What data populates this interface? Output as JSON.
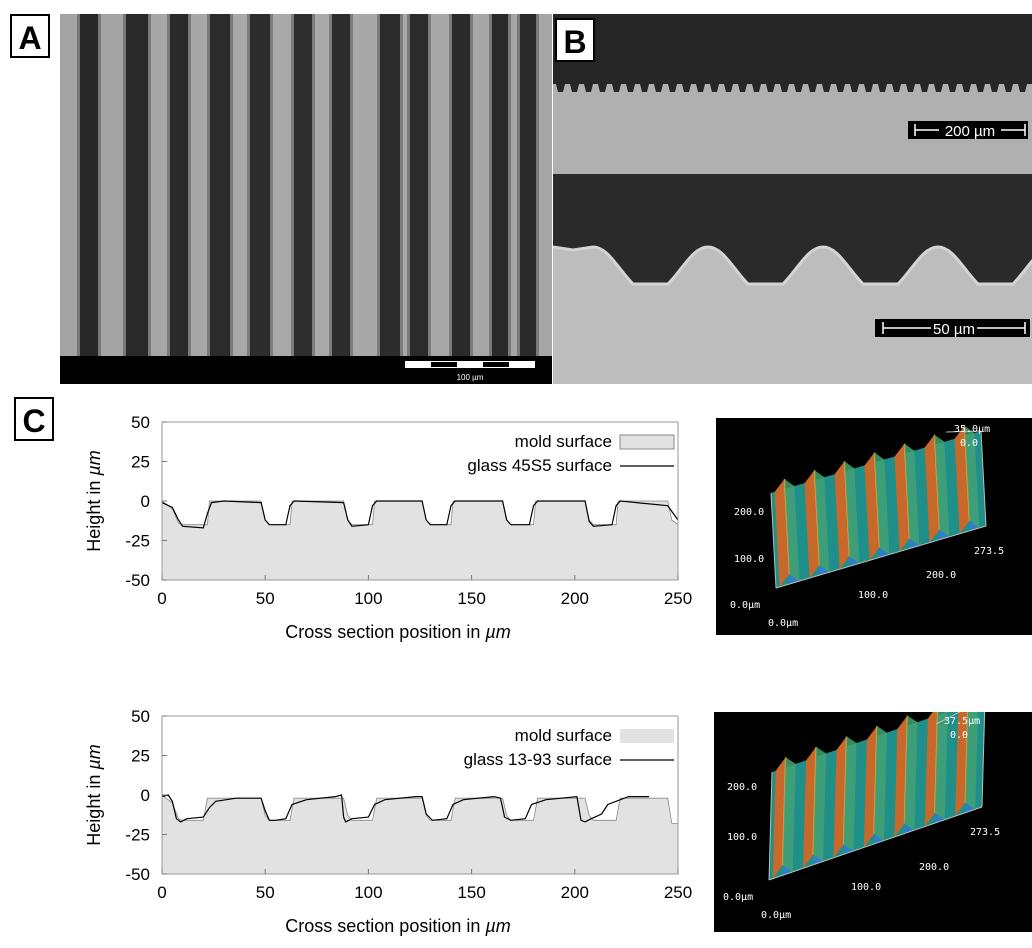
{
  "labels": {
    "a": "A",
    "b": "B",
    "c": "C"
  },
  "panel_a": {
    "scale_bar": "100 µm"
  },
  "panel_b": {
    "scale_top": "200 µm",
    "scale_bottom": "50 µm"
  },
  "profile_charts": [
    {
      "ylabel_prefix": "Height in ",
      "ylabel_unit": "µm",
      "xlabel_prefix": "Cross section position in ",
      "xlabel_unit": "µm",
      "legend_mold": "mold surface",
      "legend_glass": "glass 45S5 surface",
      "y_ticks": [
        "50",
        "25",
        "0",
        "-25",
        "-50"
      ],
      "x_ticks": [
        "0",
        "50",
        "100",
        "150",
        "200",
        "250"
      ]
    },
    {
      "ylabel_prefix": "Height in ",
      "ylabel_unit": "µm",
      "xlabel_prefix": "Cross section position in ",
      "xlabel_unit": "µm",
      "legend_mold": "mold surface",
      "legend_glass": "glass 13-93 surface",
      "y_ticks": [
        "50",
        "25",
        "0",
        "-25",
        "-50"
      ],
      "x_ticks": [
        "0",
        "50",
        "100",
        "150",
        "200",
        "250"
      ]
    }
  ],
  "surface_3d": [
    {
      "z_top": "35.0µm",
      "z_zero": "0.0",
      "y_200": "200.0",
      "y_100": "100.0",
      "y_0": "0.0µm",
      "x_0": "0.0µm",
      "x_100": "100.0",
      "x_200": "200.0",
      "x_end": "273.5"
    },
    {
      "z_top": "37.5µm",
      "z_zero": "0.0",
      "y_200": "200.0",
      "y_100": "100.0",
      "y_0": "0.0µm",
      "x_0": "0.0µm",
      "x_100": "100.0",
      "x_200": "200.0",
      "x_end": "273.5"
    }
  ],
  "chart_data": [
    {
      "type": "area",
      "ylabel": "Height in µm",
      "xlabel": "Cross section position in µm",
      "xlim": [
        0,
        250
      ],
      "ylim": [
        -50,
        50
      ],
      "series": [
        {
          "name": "mold surface",
          "x": [
            0,
            5,
            8,
            10,
            22,
            23,
            48,
            50,
            52,
            62,
            63,
            88,
            90,
            92,
            102,
            103,
            126,
            128,
            130,
            140,
            141,
            165,
            167,
            169,
            180,
            181,
            205,
            207,
            209,
            220,
            221,
            245,
            247,
            250
          ],
          "y": [
            0,
            -5,
            -14,
            -15,
            -15,
            0,
            0,
            -12,
            -15,
            -15,
            0,
            0,
            -12,
            -15,
            -15,
            0,
            0,
            -12,
            -15,
            -15,
            0,
            0,
            -12,
            -15,
            -15,
            0,
            0,
            -12,
            -15,
            -15,
            0,
            0,
            -12,
            -15
          ]
        },
        {
          "name": "glass 45S5 surface",
          "x": [
            0,
            5,
            8,
            10,
            20,
            22,
            24,
            30,
            48,
            50,
            52,
            60,
            62,
            64,
            88,
            90,
            92,
            100,
            102,
            104,
            126,
            128,
            130,
            138,
            140,
            142,
            165,
            167,
            169,
            178,
            180,
            182,
            205,
            207,
            209,
            218,
            220,
            222,
            245,
            250
          ],
          "y": [
            -1,
            -4,
            -12,
            -16,
            -17,
            -8,
            -1,
            0,
            -1,
            -12,
            -15,
            -15,
            -3,
            0,
            -1,
            -12,
            -16,
            -15,
            -3,
            0,
            0,
            -12,
            -15,
            -15,
            -3,
            0,
            0,
            -12,
            -15,
            -15,
            -3,
            0,
            0,
            -13,
            -16,
            -15,
            -3,
            0,
            -3,
            -12
          ]
        }
      ]
    },
    {
      "type": "area",
      "ylabel": "Height in µm",
      "xlabel": "Cross section position in µm",
      "xlim": [
        0,
        250
      ],
      "ylim": [
        -50,
        50
      ],
      "series": [
        {
          "name": "mold surface",
          "x": [
            0,
            5,
            8,
            10,
            20,
            22,
            48,
            50,
            52,
            62,
            64,
            88,
            90,
            92,
            102,
            104,
            126,
            128,
            130,
            140,
            142,
            165,
            167,
            169,
            180,
            182,
            205,
            207,
            209,
            220,
            222,
            245,
            247,
            250
          ],
          "y": [
            0,
            -5,
            -15,
            -16,
            -16,
            -2,
            -2,
            -13,
            -16,
            -16,
            -2,
            -2,
            -13,
            -16,
            -16,
            -2,
            -2,
            -13,
            -16,
            -16,
            -2,
            -2,
            -13,
            -16,
            -16,
            -2,
            -2,
            -13,
            -16,
            -16,
            -2,
            -2,
            -18,
            -18
          ]
        },
        {
          "name": "glass 13-93 surface",
          "x": [
            0,
            3,
            5,
            7,
            9,
            12,
            20,
            23,
            26,
            36,
            48,
            50,
            52,
            55,
            60,
            63,
            70,
            84,
            87,
            88,
            89,
            92,
            100,
            103,
            108,
            123,
            126,
            128,
            131,
            138,
            141,
            146,
            161,
            164,
            166,
            169,
            176,
            179,
            186,
            201,
            203,
            205,
            208,
            213,
            216,
            226,
            236
          ],
          "y": [
            -1,
            0,
            -4,
            -15,
            -17,
            -15,
            -14,
            -8,
            -4,
            -2,
            -2,
            -10,
            -16,
            -16,
            -15,
            -6,
            -3,
            -1,
            0,
            -14,
            -17,
            -15,
            -14,
            -6,
            -3,
            -1,
            -1,
            -12,
            -16,
            -15,
            -6,
            -3,
            -1,
            -2,
            -14,
            -16,
            -15,
            -6,
            -3,
            -1,
            -16,
            -17,
            -15,
            -12,
            -6,
            -1,
            -1
          ]
        }
      ]
    }
  ]
}
